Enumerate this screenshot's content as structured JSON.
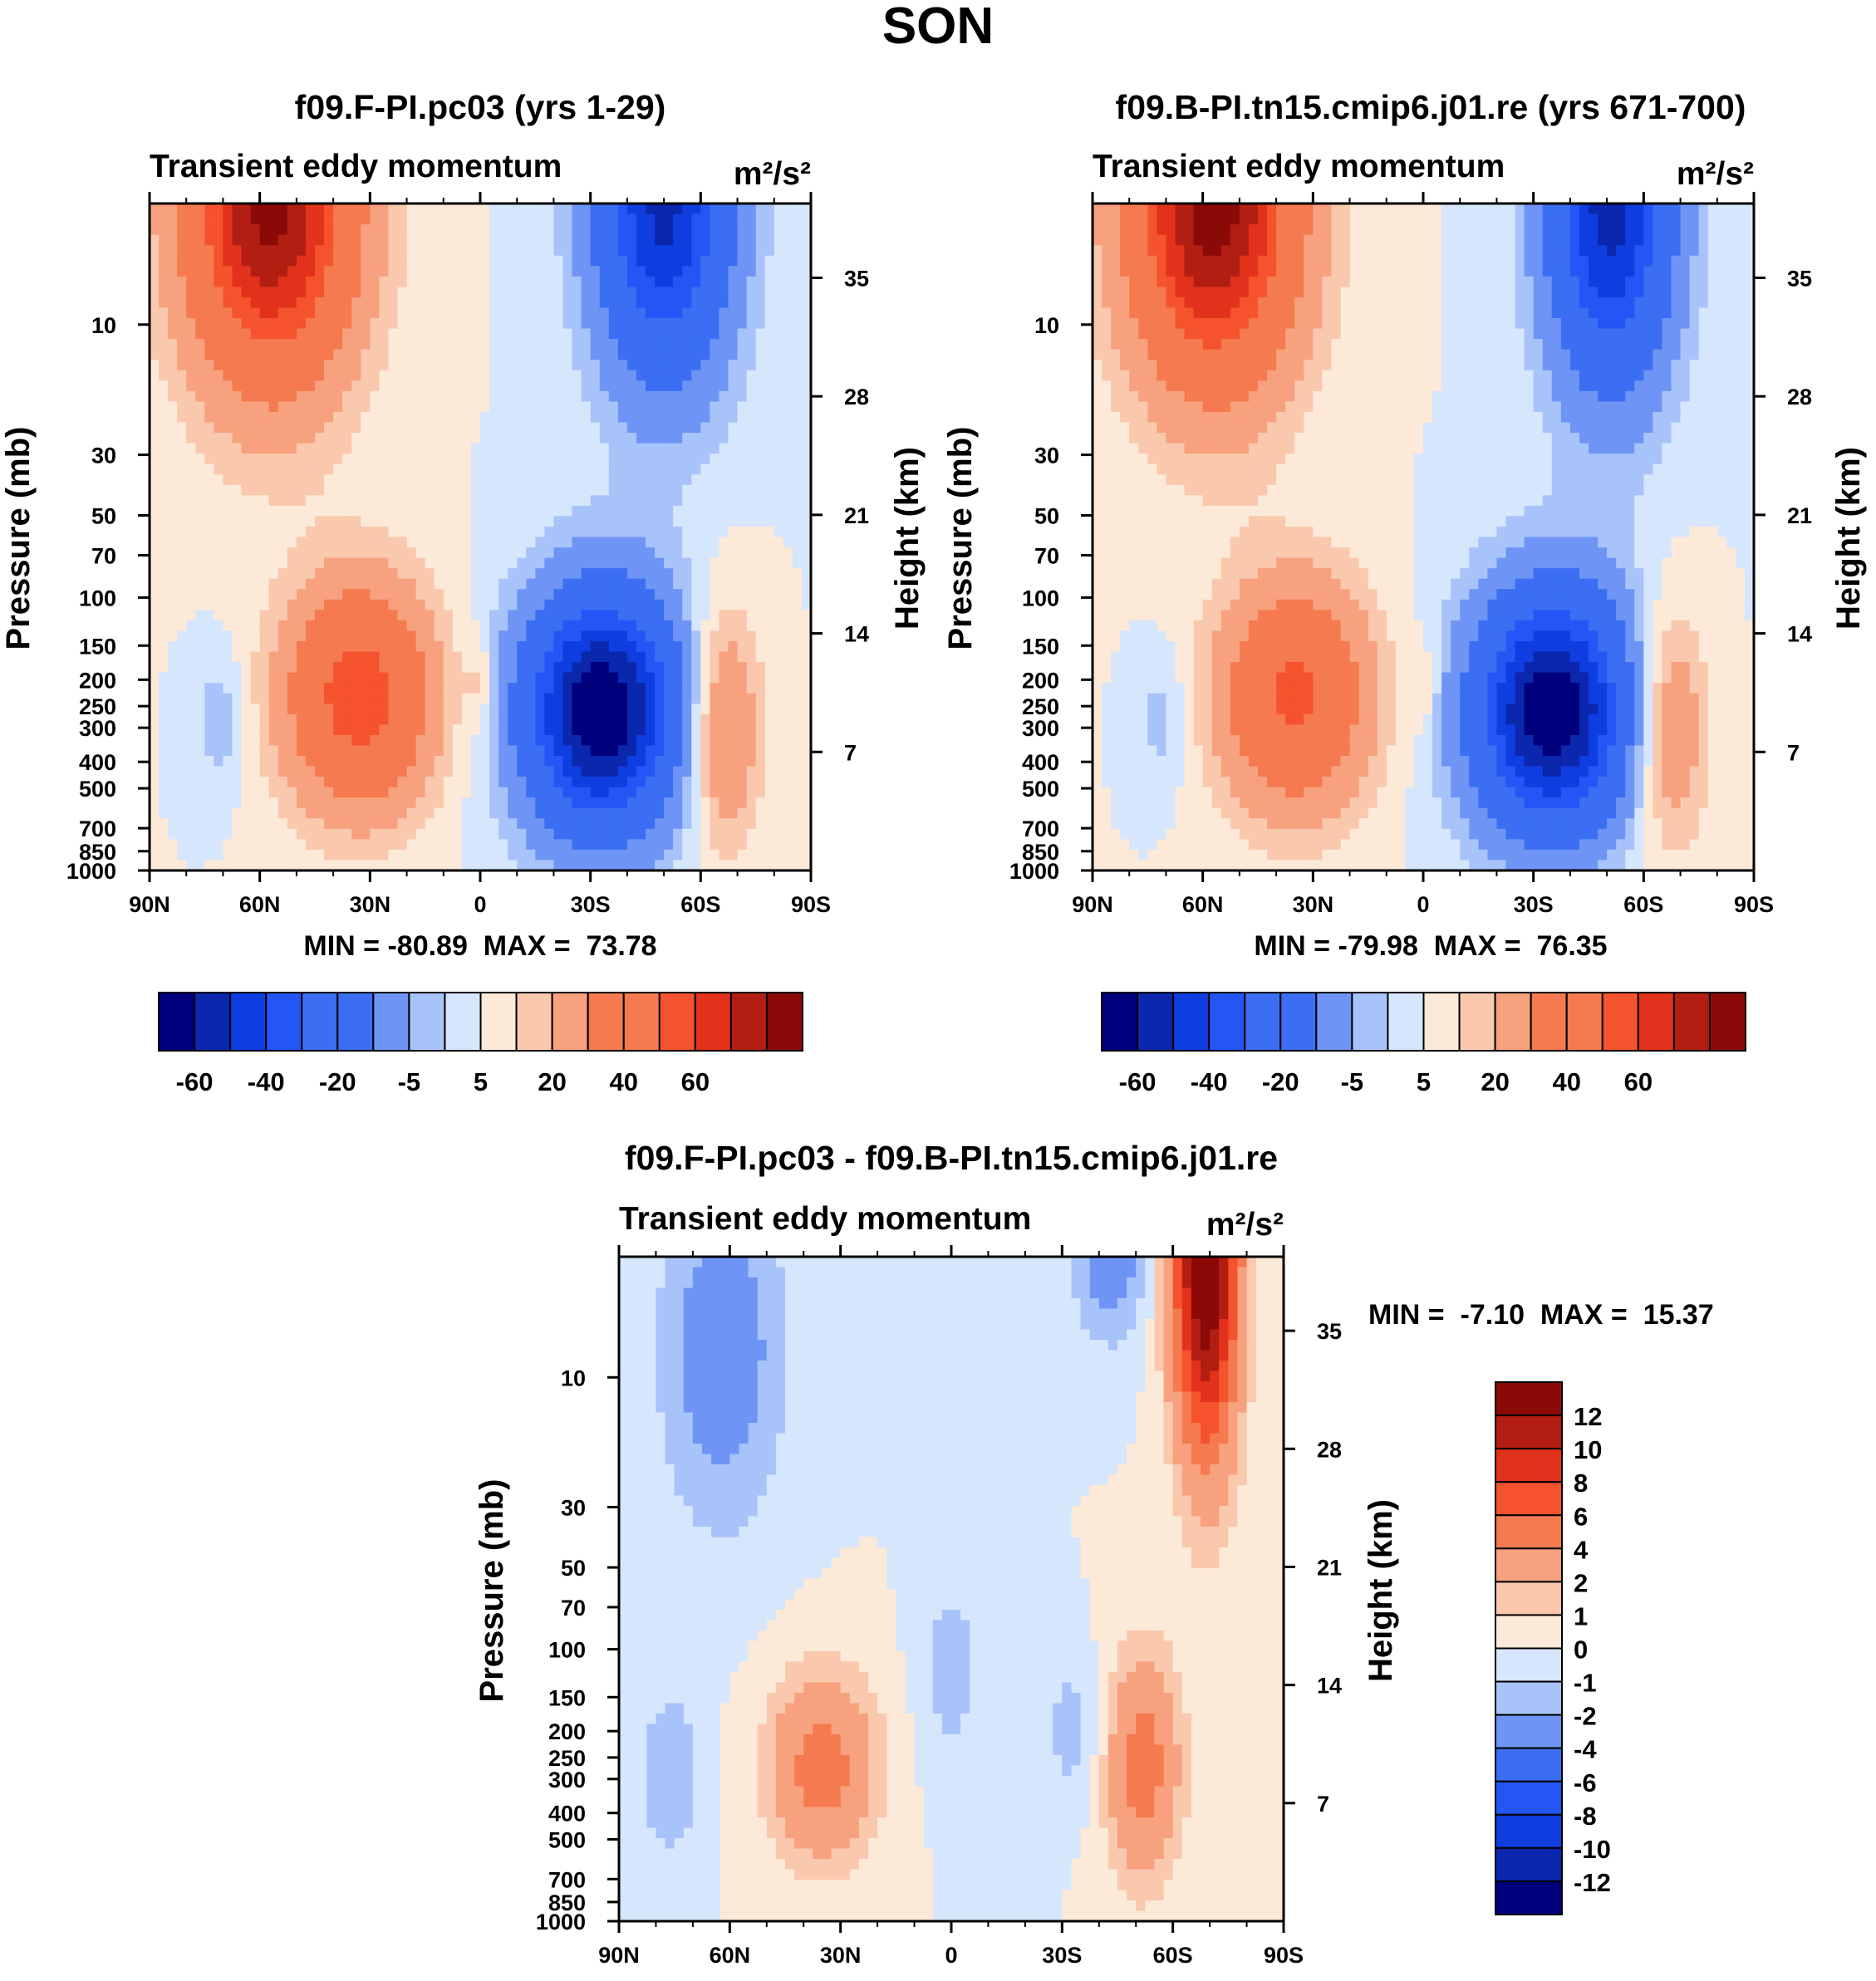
{
  "figure_title": "SON",
  "colors": {
    "neg": [
      "#00007d",
      "#0a27ad",
      "#0f3ee0",
      "#2456f5",
      "#3b6ef2",
      "#6e95f5",
      "#a8c3fa",
      "#d6e6fd"
    ],
    "pos": [
      "#fde9d8",
      "#f9c8ad",
      "#f8a17f",
      "#f57a4f",
      "#f4532d",
      "#e2321c",
      "#b31e12",
      "#8b0a08"
    ]
  },
  "chart_data": [
    {
      "type": "contour",
      "title": "f09.F-PI.pc03 (yrs 1-29)",
      "subtitle_left": "Transient eddy momentum",
      "units_label": "m²/s²",
      "ylabel_left": "Pressure (mb)",
      "ylabel_right": "Height (km)",
      "xlim": [
        -90,
        90
      ],
      "x_ticks": [
        {
          "value": -90,
          "label": "90N"
        },
        {
          "value": -60,
          "label": "60N"
        },
        {
          "value": -30,
          "label": "30N"
        },
        {
          "value": 0,
          "label": "0"
        },
        {
          "value": 30,
          "label": "30S"
        },
        {
          "value": 60,
          "label": "60S"
        },
        {
          "value": 90,
          "label": "90S"
        }
      ],
      "pressure_ticks": [
        10,
        30,
        50,
        70,
        100,
        150,
        200,
        250,
        300,
        400,
        500,
        700,
        850,
        1000
      ],
      "pressure_top_mb": 3.6,
      "height_ticks_km": [
        35,
        28,
        21,
        14,
        7
      ],
      "stats_text": "MIN = -80.89  MAX =  73.78",
      "min": -80.89,
      "max": 73.78,
      "contour_levels": [
        -70,
        -60,
        -50,
        -40,
        -30,
        -20,
        -10,
        -5,
        0,
        5,
        10,
        20,
        30,
        40,
        50,
        60,
        70
      ],
      "colorbar_tick_labels": [
        "-60",
        "-40",
        "-20",
        "-5",
        "5",
        "20",
        "40",
        "60"
      ],
      "features": [
        {
          "lat": -57,
          "p": 3.6,
          "lat_width": 16,
          "p_range": [
            3.6,
            30
          ],
          "value": 74
        },
        {
          "lat": 50,
          "p": 3.6,
          "lat_width": 13,
          "p_range": [
            3.6,
            30
          ],
          "value": -63
        },
        {
          "lat": -33,
          "p": 230,
          "lat_width": 14,
          "p_range": [
            120,
            450
          ],
          "value": 48
        },
        {
          "lat": 33,
          "p": 260,
          "lat_width": 15,
          "p_range": [
            120,
            500
          ],
          "value": -81
        },
        {
          "lat": 66,
          "p": 300,
          "lat_width": 7,
          "p_range": [
            150,
            600
          ],
          "value": 24
        },
        {
          "lat": -71,
          "p": 280,
          "lat_width": 5,
          "p_range": [
            180,
            400
          ],
          "value": -9
        },
        {
          "lat": 0,
          "p": 210,
          "lat_width": 3,
          "p_range": [
            160,
            280
          ],
          "value": 8
        }
      ]
    },
    {
      "type": "contour",
      "title": "f09.B-PI.tn15.cmip6.j01.re (yrs 671-700)",
      "subtitle_left": "Transient eddy momentum",
      "units_label": "m²/s²",
      "ylabel_left": "Pressure (mb)",
      "ylabel_right": "Height (km)",
      "xlim": [
        -90,
        90
      ],
      "x_ticks": [
        {
          "value": -90,
          "label": "90N"
        },
        {
          "value": -60,
          "label": "60N"
        },
        {
          "value": -30,
          "label": "30N"
        },
        {
          "value": 0,
          "label": "0"
        },
        {
          "value": 30,
          "label": "30S"
        },
        {
          "value": 60,
          "label": "60S"
        },
        {
          "value": 90,
          "label": "90S"
        }
      ],
      "pressure_ticks": [
        10,
        30,
        50,
        70,
        100,
        150,
        200,
        250,
        300,
        400,
        500,
        700,
        850,
        1000
      ],
      "pressure_top_mb": 3.6,
      "height_ticks_km": [
        35,
        28,
        21,
        14,
        7
      ],
      "stats_text": "MIN = -79.98  MAX =  76.35",
      "min": -79.98,
      "max": 76.35,
      "contour_levels": [
        -70,
        -60,
        -50,
        -40,
        -30,
        -20,
        -10,
        -5,
        0,
        5,
        10,
        20,
        30,
        40,
        50,
        60,
        70
      ],
      "colorbar_tick_labels": [
        "-60",
        "-40",
        "-20",
        "-5",
        "5",
        "20",
        "40",
        "60"
      ],
      "features": [
        {
          "lat": -57,
          "p": 3.6,
          "lat_width": 16,
          "p_range": [
            3.6,
            30
          ],
          "value": 76
        },
        {
          "lat": 51,
          "p": 3.6,
          "lat_width": 12,
          "p_range": [
            3.6,
            32
          ],
          "value": -65
        },
        {
          "lat": -35,
          "p": 230,
          "lat_width": 14,
          "p_range": [
            120,
            450
          ],
          "value": 43
        },
        {
          "lat": 35,
          "p": 260,
          "lat_width": 15,
          "p_range": [
            120,
            500
          ],
          "value": -80
        },
        {
          "lat": 67,
          "p": 300,
          "lat_width": 7,
          "p_range": [
            150,
            600
          ],
          "value": 22
        },
        {
          "lat": -71,
          "p": 280,
          "lat_width": 5,
          "p_range": [
            180,
            400
          ],
          "value": -8
        },
        {
          "lat": 0,
          "p": 210,
          "lat_width": 3,
          "p_range": [
            160,
            280
          ],
          "value": 7
        }
      ]
    },
    {
      "type": "contour",
      "title": "f09.F-PI.pc03 - f09.B-PI.tn15.cmip6.j01.re",
      "subtitle_left": "Transient eddy momentum",
      "units_label": "m²/s²",
      "ylabel_left": "Pressure (mb)",
      "ylabel_right": "Height (km)",
      "xlim": [
        -90,
        90
      ],
      "x_ticks": [
        {
          "value": -90,
          "label": "90N"
        },
        {
          "value": -60,
          "label": "60N"
        },
        {
          "value": -30,
          "label": "30N"
        },
        {
          "value": 0,
          "label": "0"
        },
        {
          "value": 30,
          "label": "30S"
        },
        {
          "value": 60,
          "label": "60S"
        },
        {
          "value": 90,
          "label": "90S"
        }
      ],
      "pressure_ticks": [
        10,
        30,
        50,
        70,
        100,
        150,
        200,
        250,
        300,
        400,
        500,
        700,
        850,
        1000
      ],
      "pressure_top_mb": 3.6,
      "height_ticks_km": [
        35,
        28,
        21,
        14,
        7
      ],
      "stats_text": "MIN =  -7.10  MAX =  15.37",
      "min": -7.1,
      "max": 15.37,
      "contour_levels": [
        -12,
        -10,
        -8,
        -6,
        -4,
        -2,
        -1,
        0,
        1,
        2,
        4,
        6,
        8,
        10,
        12
      ],
      "colorbar_tick_labels": [
        "12",
        "10",
        "8",
        "6",
        "4",
        "2",
        "1",
        "0",
        "-1",
        "-2",
        "-4",
        "-6",
        "-8",
        "-10",
        "-12"
      ],
      "features": [
        {
          "lat": 69,
          "p": 3.6,
          "lat_width": 6,
          "p_range": [
            3.6,
            35
          ],
          "value": 15
        },
        {
          "lat": -62,
          "p": 8,
          "lat_width": 12,
          "p_range": [
            3.6,
            30
          ],
          "value": -3
        },
        {
          "lat": 43,
          "p": 3.6,
          "lat_width": 7,
          "p_range": [
            3.6,
            10
          ],
          "value": -3
        },
        {
          "lat": -35,
          "p": 270,
          "lat_width": 10,
          "p_range": [
            150,
            450
          ],
          "value": 5
        },
        {
          "lat": 52,
          "p": 270,
          "lat_width": 7,
          "p_range": [
            120,
            450
          ],
          "value": 5
        },
        {
          "lat": -76,
          "p": 290,
          "lat_width": 6,
          "p_range": [
            180,
            500
          ],
          "value": -2
        },
        {
          "lat": 0,
          "p": 120,
          "lat_width": 6,
          "p_range": [
            60,
            200
          ],
          "value": -1.5
        },
        {
          "lat": 33,
          "p": 200,
          "lat_width": 6,
          "p_range": [
            120,
            300
          ],
          "value": -1.5
        }
      ]
    }
  ]
}
